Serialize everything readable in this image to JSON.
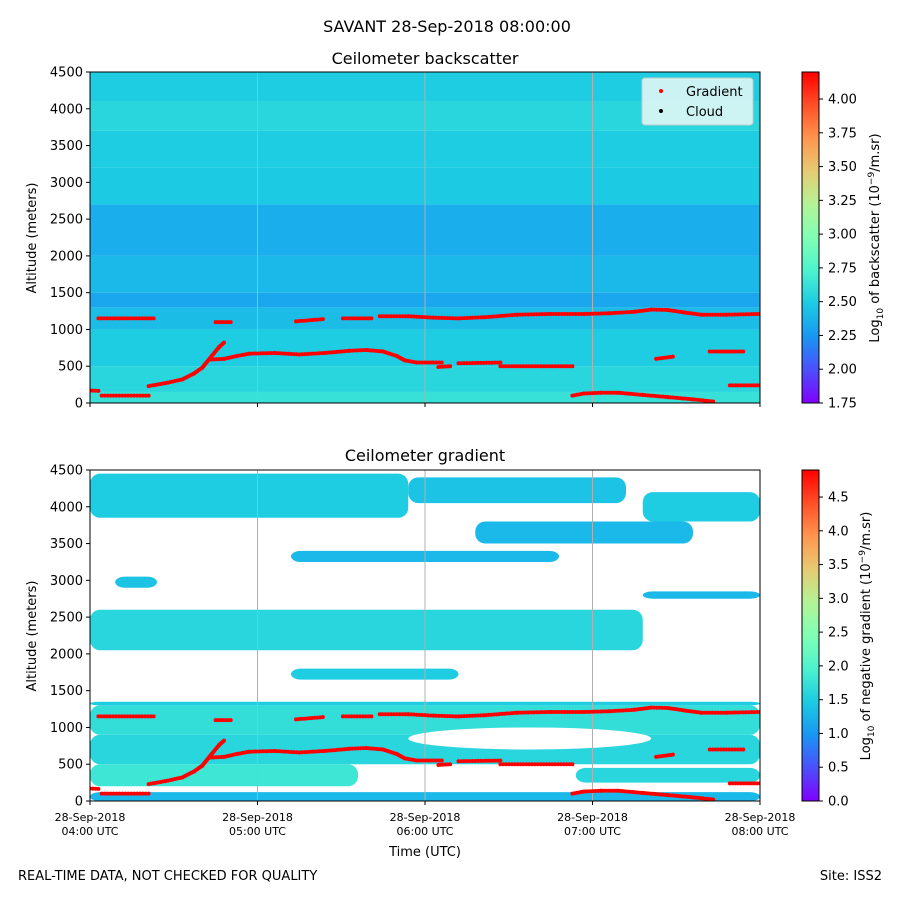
{
  "suptitle": "SAVANT 28-Sep-2018 08:00:00",
  "footer": {
    "left": "REAL-TIME DATA, NOT CHECKED FOR QUALITY",
    "right": "Site: ISS2"
  },
  "colors": {
    "gradient_points": "#ff0000",
    "cloud_points": "#000000",
    "legend_bg": "#d6f5f5",
    "grid": "#b0b0b0"
  },
  "chart_data": [
    {
      "type": "heatmap",
      "title": "Ceilometer backscatter",
      "xlabel": "",
      "ylabel": "Altitude (meters)",
      "xlim_hours": [
        4,
        8
      ],
      "ylim": [
        0,
        4500
      ],
      "yticks": [
        "0",
        "500",
        "1000",
        "1500",
        "2000",
        "2500",
        "3000",
        "3500",
        "4000",
        "4500"
      ],
      "colorbar": {
        "label_prefix": "Log",
        "label_sub": "10",
        "label_mid": " of backscatter (10",
        "label_sup": "−9",
        "label_suffix": "/m.sr)",
        "vmin": 1.75,
        "vmax": 4.2,
        "ticks": [
          "1.75",
          "2.00",
          "2.25",
          "2.50",
          "2.75",
          "3.00",
          "3.25",
          "3.50",
          "3.75",
          "4.00"
        ],
        "tick_values": [
          1.75,
          2.0,
          2.25,
          2.5,
          2.75,
          3.0,
          3.25,
          3.5,
          3.75,
          4.0
        ]
      },
      "legend": {
        "position": "top-right",
        "entries": [
          {
            "label": "Gradient",
            "color": "#ff0000"
          },
          {
            "label": "Cloud",
            "color": "#000000"
          }
        ]
      },
      "background_layers": [
        {
          "from": 0,
          "to": 150,
          "value": 2.62
        },
        {
          "from": 150,
          "to": 500,
          "value": 2.55
        },
        {
          "from": 500,
          "to": 1000,
          "value": 2.5
        },
        {
          "from": 1000,
          "to": 1300,
          "value": 2.42
        },
        {
          "from": 1300,
          "to": 1500,
          "value": 2.32
        },
        {
          "from": 1500,
          "to": 2000,
          "value": 2.4
        },
        {
          "from": 2000,
          "to": 2700,
          "value": 2.35
        },
        {
          "from": 2700,
          "to": 3200,
          "value": 2.48
        },
        {
          "from": 3200,
          "to": 3700,
          "value": 2.5
        },
        {
          "from": 3700,
          "to": 4100,
          "value": 2.55
        },
        {
          "from": 4100,
          "to": 4500,
          "value": 2.5
        }
      ]
    },
    {
      "type": "heatmap",
      "title": "Ceilometer gradient",
      "xlabel": "Time (UTC)",
      "ylabel": "Altitude (meters)",
      "xlim_hours": [
        4,
        8
      ],
      "ylim": [
        0,
        4500
      ],
      "yticks": [
        "0",
        "500",
        "1000",
        "1500",
        "2000",
        "2500",
        "3000",
        "3500",
        "4000",
        "4500"
      ],
      "xticks": [
        {
          "hour": 4,
          "date": "28-Sep-2018",
          "time": "04:00 UTC"
        },
        {
          "hour": 5,
          "date": "28-Sep-2018",
          "time": "05:00 UTC"
        },
        {
          "hour": 6,
          "date": "28-Sep-2018",
          "time": "06:00 UTC"
        },
        {
          "hour": 7,
          "date": "28-Sep-2018",
          "time": "07:00 UTC"
        },
        {
          "hour": 8,
          "date": "28-Sep-2018",
          "time": "08:00 UTC"
        }
      ],
      "colorbar": {
        "label_prefix": "Log",
        "label_sub": "10",
        "label_mid": " of negative gradient (10",
        "label_sup": "−9",
        "label_suffix": "/m.sr)",
        "vmin": 0.0,
        "vmax": 4.9,
        "ticks": [
          "0.0",
          "0.5",
          "1.0",
          "1.5",
          "2.0",
          "2.5",
          "3.0",
          "3.5",
          "4.0",
          "4.5"
        ],
        "tick_values": [
          0.0,
          0.5,
          1.0,
          1.5,
          2.0,
          2.5,
          3.0,
          3.5,
          4.0,
          4.5
        ]
      },
      "bands": [
        {
          "t0": 4.0,
          "t1": 8.0,
          "base": 1300,
          "top": 1350,
          "value": 1.5
        },
        {
          "t0": 4.0,
          "t1": 8.0,
          "base": 900,
          "top": 1300,
          "value": 1.7
        },
        {
          "t0": 4.0,
          "t1": 8.0,
          "base": 500,
          "top": 900,
          "value": 1.6
        },
        {
          "t0": 4.0,
          "t1": 5.6,
          "base": 200,
          "top": 500,
          "value": 1.8
        },
        {
          "t0": 6.9,
          "t1": 8.0,
          "base": 250,
          "top": 450,
          "value": 1.6
        },
        {
          "t0": 4.0,
          "t1": 8.0,
          "base": 0,
          "top": 120,
          "value": 1.3
        },
        {
          "t0": 4.0,
          "t1": 7.3,
          "base": 2050,
          "top": 2600,
          "value": 1.6
        },
        {
          "t0": 5.2,
          "t1": 6.2,
          "base": 1650,
          "top": 1800,
          "value": 1.5
        },
        {
          "t0": 7.3,
          "t1": 8.0,
          "base": 2750,
          "top": 2850,
          "value": 1.3
        },
        {
          "t0": 4.15,
          "t1": 4.4,
          "base": 2900,
          "top": 3050,
          "value": 1.4
        },
        {
          "t0": 4.0,
          "t1": 5.9,
          "base": 3850,
          "top": 4450,
          "value": 1.5
        },
        {
          "t0": 5.9,
          "t1": 7.2,
          "base": 4050,
          "top": 4400,
          "value": 1.4
        },
        {
          "t0": 6.3,
          "t1": 7.6,
          "base": 3500,
          "top": 3800,
          "value": 1.3
        },
        {
          "t0": 7.3,
          "t1": 8.0,
          "base": 3800,
          "top": 4200,
          "value": 1.5
        },
        {
          "t0": 5.2,
          "t1": 6.8,
          "base": 3250,
          "top": 3400,
          "value": 1.3
        }
      ],
      "blanks": [
        {
          "t0": 5.9,
          "t1": 7.35,
          "base": 700,
          "top": 1000
        }
      ]
    }
  ],
  "gradient_series": [
    [
      [
        4.0,
        170
      ],
      [
        4.05,
        165
      ]
    ],
    [
      [
        4.07,
        100
      ],
      [
        4.35,
        100
      ]
    ],
    [
      [
        4.05,
        1150
      ],
      [
        4.38,
        1150
      ]
    ],
    [
      [
        4.35,
        230
      ],
      [
        4.45,
        270
      ],
      [
        4.55,
        320
      ],
      [
        4.62,
        400
      ],
      [
        4.67,
        480
      ],
      [
        4.72,
        620
      ],
      [
        4.77,
        760
      ],
      [
        4.8,
        820
      ]
    ],
    [
      [
        4.75,
        1100
      ],
      [
        4.84,
        1100
      ]
    ],
    [
      [
        4.71,
        590
      ],
      [
        4.8,
        600
      ],
      [
        4.88,
        640
      ],
      [
        4.95,
        670
      ],
      [
        5.1,
        680
      ],
      [
        5.25,
        660
      ],
      [
        5.4,
        680
      ],
      [
        5.55,
        710
      ],
      [
        5.65,
        720
      ],
      [
        5.75,
        700
      ],
      [
        5.83,
        640
      ],
      [
        5.88,
        580
      ],
      [
        5.95,
        550
      ],
      [
        6.1,
        550
      ]
    ],
    [
      [
        5.23,
        1110
      ],
      [
        5.39,
        1140
      ]
    ],
    [
      [
        5.51,
        1150
      ],
      [
        5.68,
        1150
      ]
    ],
    [
      [
        5.73,
        1180
      ],
      [
        5.9,
        1180
      ],
      [
        6.05,
        1160
      ],
      [
        6.2,
        1150
      ],
      [
        6.35,
        1165
      ],
      [
        6.55,
        1200
      ],
      [
        6.75,
        1210
      ],
      [
        6.95,
        1210
      ],
      [
        7.1,
        1220
      ],
      [
        7.25,
        1240
      ],
      [
        7.35,
        1270
      ],
      [
        7.45,
        1265
      ],
      [
        7.55,
        1230
      ],
      [
        7.65,
        1200
      ],
      [
        7.8,
        1200
      ],
      [
        8.0,
        1210
      ]
    ],
    [
      [
        6.08,
        490
      ],
      [
        6.15,
        500
      ]
    ],
    [
      [
        6.2,
        540
      ],
      [
        6.45,
        550
      ]
    ],
    [
      [
        6.45,
        500
      ],
      [
        6.88,
        500
      ]
    ],
    [
      [
        6.88,
        100
      ],
      [
        6.95,
        130
      ],
      [
        7.05,
        140
      ],
      [
        7.15,
        140
      ],
      [
        7.3,
        110
      ],
      [
        7.45,
        80
      ],
      [
        7.6,
        50
      ],
      [
        7.72,
        20
      ]
    ],
    [
      [
        7.38,
        600
      ],
      [
        7.48,
        630
      ]
    ],
    [
      [
        7.7,
        700
      ],
      [
        7.9,
        700
      ]
    ],
    [
      [
        7.82,
        240
      ],
      [
        8.0,
        240
      ]
    ]
  ]
}
